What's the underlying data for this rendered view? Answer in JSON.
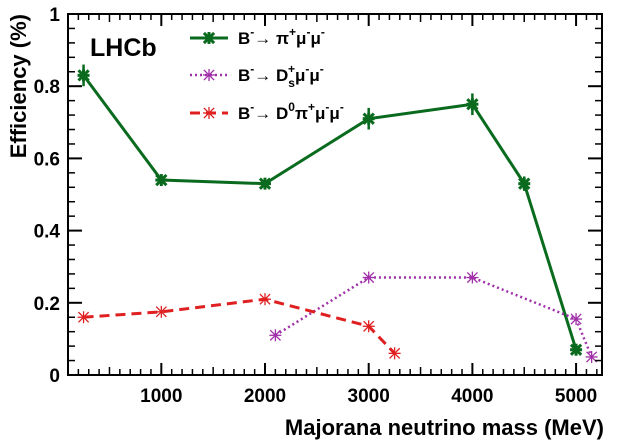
{
  "chart_data": {
    "type": "line",
    "experiment_label": "LHCb",
    "xlabel": "Majorana neutrino mass (MeV)",
    "ylabel": "Efficiency (%)",
    "xlim": [
      100,
      5250
    ],
    "ylim": [
      0,
      1
    ],
    "x_ticks": [
      1000,
      2000,
      3000,
      4000,
      5000
    ],
    "y_ticks": [
      0,
      0.2,
      0.4,
      0.6,
      0.8,
      1
    ],
    "y_tick_labels": [
      "0",
      "0.2",
      "0.4",
      "0.6",
      "0.8",
      "1"
    ],
    "legend_position": "top-center",
    "series": [
      {
        "name": "B⁻→ π⁺μ⁻μ⁻",
        "legend": [
          "B",
          "-",
          "→ π",
          "+",
          "μ",
          "-",
          "μ",
          "-"
        ],
        "color": "#0a6b1f",
        "style": "solid",
        "marker": "star",
        "x": [
          250,
          1000,
          2000,
          3000,
          4000,
          4500,
          5000
        ],
        "y": [
          0.83,
          0.54,
          0.53,
          0.71,
          0.75,
          0.53,
          0.07
        ],
        "err": [
          0.03,
          0.015,
          0.015,
          0.03,
          0.03,
          0.02,
          0.012
        ]
      },
      {
        "name": "B⁻→ Ds⁺μ⁻μ⁻",
        "legend": [
          "B",
          "-",
          "→ D",
          "s",
          "+",
          "μ",
          "-",
          "μ",
          "-"
        ],
        "color": "#a030a8",
        "style": "dotted",
        "marker": "asterisk",
        "x": [
          2100,
          3000,
          4000,
          5000,
          5150
        ],
        "y": [
          0.11,
          0.27,
          0.27,
          0.155,
          0.05
        ]
      },
      {
        "name": "B⁻→ D⁰π⁺μ⁻μ⁻",
        "legend": [
          "B",
          "-",
          "→ D",
          "0",
          "π",
          "+",
          "μ",
          "-",
          "μ",
          "-"
        ],
        "color": "#e02020",
        "style": "dashed",
        "marker": "asterisk",
        "x": [
          250,
          1000,
          2000,
          3000,
          3250
        ],
        "y": [
          0.16,
          0.175,
          0.21,
          0.135,
          0.06
        ]
      }
    ]
  }
}
